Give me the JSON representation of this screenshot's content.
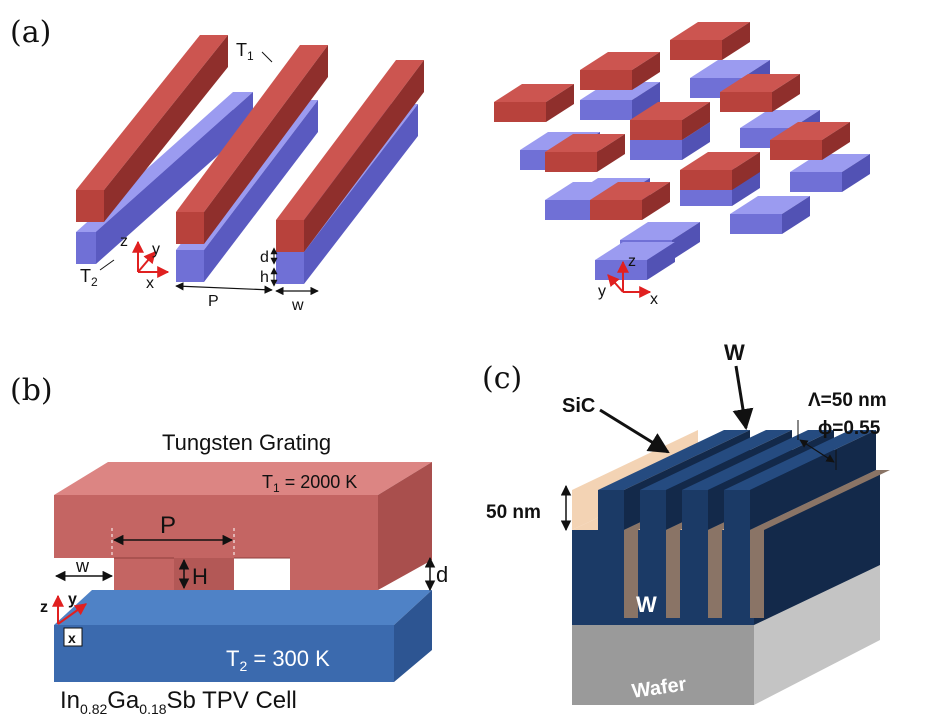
{
  "panels": {
    "a": {
      "label": "(a)",
      "t1": "T",
      "t1_sub": "1",
      "t2": "T",
      "t2_sub": "2",
      "axis_z": "z",
      "axis_y": "y",
      "axis_x": "x",
      "dim_d": "d",
      "dim_h": "h",
      "dim_p": "P",
      "dim_w": "w",
      "colors": {
        "top_front": "#b8423c",
        "top_top": "#cc5550",
        "top_side": "#8f2f2c",
        "bot_front": "#7070d6",
        "bot_top": "#9b9bf0",
        "bot_side": "#5252b4"
      }
    },
    "b": {
      "label": "(b)",
      "title": "Tungsten Grating",
      "t1": "T",
      "t1_sub": "1",
      "t1_val": " = 2000 K",
      "t2": "T",
      "t2_sub": "2",
      "t2_val": " = 300 K",
      "dim_p": "P",
      "dim_w": "w",
      "dim_h": "H",
      "dim_d": "d",
      "axis_z": "z",
      "axis_y": "y",
      "axis_x": "x",
      "cell_main": "In",
      "cell_sub1": "0.82",
      "cell_mid": "Ga",
      "cell_sub2": "0.18",
      "cell_end": "Sb TPV Cell",
      "colors": {
        "grating_front": "#c46563",
        "grating_top": "#dc8583",
        "grating_side": "#a94f4d",
        "cell_front": "#3b6aae",
        "cell_top": "#4f82c6",
        "cell_side": "#2d5592"
      }
    },
    "c": {
      "label": "(c)",
      "w_top": "W",
      "sic": "SiC",
      "lambda": "Λ=50 nm",
      "phi": "ϕ=0.55",
      "thickness": "50 nm",
      "w_body": "W",
      "wafer": "Wafer",
      "colors": {
        "navy_front": "#1b3a66",
        "navy_top": "#254b80",
        "navy_side": "#13294a",
        "sic": "#f3d3b4",
        "groove": "#8a7466",
        "wafer_front": "#9a9a9a",
        "wafer_side": "#c0c0c0"
      }
    }
  }
}
